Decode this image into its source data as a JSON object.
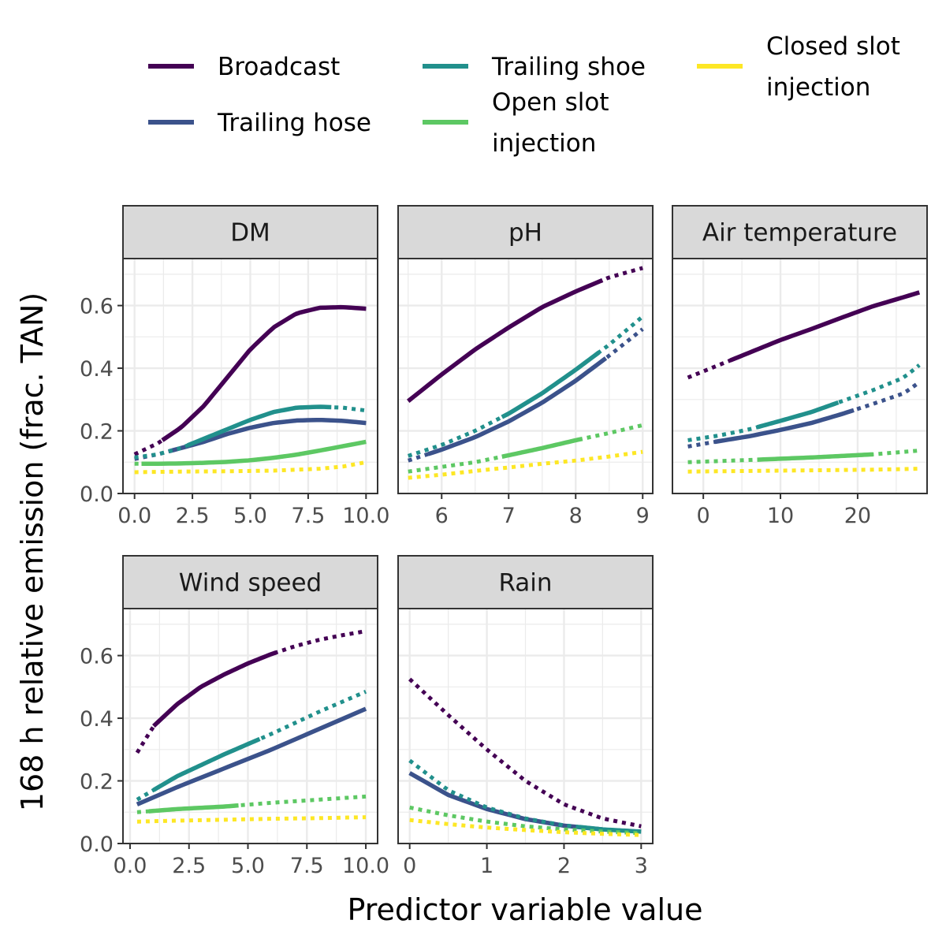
{
  "chart_data": {
    "type": "line",
    "ylabel": "168 h relative emission (frac. TAN)",
    "xlabel": "Predictor variable value",
    "legend": {
      "placement": "top",
      "entries": [
        {
          "series": "Broadcast",
          "lines": [
            "Broadcast"
          ],
          "color": "#440154"
        },
        {
          "series": "Trailing hose",
          "lines": [
            "Trailing hose"
          ],
          "color": "#3b528b"
        },
        {
          "series": "Trailing shoe",
          "lines": [
            "Trailing shoe"
          ],
          "color": "#21908c"
        },
        {
          "series": "Open slot injection",
          "lines": [
            "Open slot",
            "injection"
          ],
          "color": "#5dc863"
        },
        {
          "series": "Closed slot injection",
          "lines": [
            "Closed slot",
            "injection"
          ],
          "color": "#fde725"
        }
      ]
    },
    "ylim": [
      0,
      0.75
    ],
    "yticks": [
      "0.0",
      "0.2",
      "0.4",
      "0.6"
    ],
    "ytick_values": [
      0,
      0.2,
      0.4,
      0.6
    ],
    "grid": true,
    "note_linestyle": "solid = observed range, dotted = extrapolation",
    "panels": [
      {
        "strip": "DM",
        "xlim": [
          -0.5,
          10.5
        ],
        "xticks": [
          "0.0",
          "2.5",
          "5.0",
          "7.5",
          "10.0"
        ],
        "xtick_values": [
          0,
          2.5,
          5,
          7.5,
          10
        ],
        "series": [
          {
            "name": "Broadcast",
            "x": [
              0,
              1,
              2,
              3,
              4,
              5,
              6,
              7,
              8,
              9,
              10
            ],
            "y": [
              0.125,
              0.16,
              0.21,
              0.28,
              0.37,
              0.46,
              0.53,
              0.575,
              0.593,
              0.595,
              0.59
            ],
            "solid": [
              1.2,
              10
            ]
          },
          {
            "name": "Trailing hose",
            "x": [
              0,
              1,
              2,
              3,
              4,
              5,
              6,
              7,
              8,
              9,
              10
            ],
            "y": [
              0.11,
              0.125,
              0.145,
              0.165,
              0.19,
              0.21,
              0.225,
              0.233,
              0.235,
              0.232,
              0.225
            ],
            "solid": [
              1.5,
              10
            ]
          },
          {
            "name": "Trailing shoe",
            "x": [
              0,
              1,
              2,
              3,
              4,
              5,
              6,
              7,
              8,
              9,
              10
            ],
            "y": [
              0.115,
              0.125,
              0.145,
              0.175,
              0.205,
              0.235,
              0.26,
              0.274,
              0.277,
              0.274,
              0.265
            ],
            "solid": [
              2.3,
              8.5
            ]
          },
          {
            "name": "Open slot injection",
            "x": [
              0,
              1,
              2,
              3,
              4,
              5,
              6,
              7,
              8,
              9,
              10
            ],
            "y": [
              0.095,
              0.095,
              0.096,
              0.098,
              0.101,
              0.106,
              0.114,
              0.124,
              0.137,
              0.151,
              0.165
            ],
            "solid": [
              0.3,
              10
            ]
          },
          {
            "name": "Closed slot injection",
            "x": [
              0,
              2,
              4,
              6,
              8,
              9,
              10
            ],
            "y": [
              0.068,
              0.07,
              0.071,
              0.073,
              0.079,
              0.086,
              0.1
            ],
            "solid": null
          }
        ]
      },
      {
        "strip": "pH",
        "xlim": [
          5.35,
          9.15
        ],
        "xticks": [
          "6",
          "7",
          "8",
          "9"
        ],
        "xtick_values": [
          6,
          7,
          8,
          9
        ],
        "series": [
          {
            "name": "Broadcast",
            "x": [
              5.5,
              6,
              6.5,
              7,
              7.5,
              8,
              8.5,
              9
            ],
            "y": [
              0.295,
              0.38,
              0.46,
              0.53,
              0.595,
              0.645,
              0.69,
              0.72
            ],
            "solid": [
              5.5,
              8.4
            ]
          },
          {
            "name": "Trailing hose",
            "x": [
              5.5,
              6,
              6.5,
              7,
              7.5,
              8,
              8.5,
              9
            ],
            "y": [
              0.105,
              0.14,
              0.18,
              0.23,
              0.29,
              0.36,
              0.44,
              0.525
            ],
            "solid": [
              5.8,
              8.45
            ]
          },
          {
            "name": "Trailing shoe",
            "x": [
              5.5,
              6,
              6.5,
              7,
              7.5,
              8,
              8.5,
              9
            ],
            "y": [
              0.12,
              0.155,
              0.2,
              0.255,
              0.32,
              0.395,
              0.475,
              0.565
            ],
            "solid": [
              6.9,
              8.35
            ]
          },
          {
            "name": "Open slot injection",
            "x": [
              5.5,
              6,
              6.5,
              7,
              7.5,
              8,
              8.5,
              9
            ],
            "y": [
              0.07,
              0.085,
              0.1,
              0.122,
              0.145,
              0.17,
              0.193,
              0.218
            ],
            "solid": [
              6.9,
              8.1
            ]
          },
          {
            "name": "Closed slot injection",
            "x": [
              5.5,
              6,
              6.5,
              7,
              7.5,
              8,
              8.5,
              9
            ],
            "y": [
              0.05,
              0.06,
              0.072,
              0.083,
              0.095,
              0.105,
              0.118,
              0.133
            ],
            "solid": null
          }
        ]
      },
      {
        "strip": "Air temperature",
        "xlim": [
          -4,
          29
        ],
        "xticks": [
          "0",
          "10",
          "20"
        ],
        "xtick_values": [
          0,
          10,
          20
        ],
        "series": [
          {
            "name": "Broadcast",
            "x": [
              -2,
              2,
              6,
              10,
              14,
              18,
              22,
              26,
              28
            ],
            "y": [
              0.37,
              0.41,
              0.45,
              0.49,
              0.525,
              0.562,
              0.598,
              0.627,
              0.642
            ],
            "solid": [
              3.5,
              28
            ]
          },
          {
            "name": "Trailing hose",
            "x": [
              -2,
              2,
              6,
              10,
              14,
              18,
              22,
              26,
              28
            ],
            "y": [
              0.15,
              0.167,
              0.183,
              0.203,
              0.225,
              0.254,
              0.286,
              0.32,
              0.355
            ],
            "solid": [
              1.5,
              19.5
            ]
          },
          {
            "name": "Trailing shoe",
            "x": [
              -2,
              2,
              6,
              10,
              14,
              18,
              22,
              26,
              28
            ],
            "y": [
              0.17,
              0.185,
              0.205,
              0.232,
              0.26,
              0.295,
              0.33,
              0.37,
              0.41
            ],
            "solid": [
              7,
              17.5
            ]
          },
          {
            "name": "Open slot injection",
            "x": [
              -2,
              6,
              14,
              22,
              28
            ],
            "y": [
              0.1,
              0.107,
              0.115,
              0.125,
              0.137
            ],
            "solid": [
              7,
              22
            ]
          },
          {
            "name": "Closed slot injection",
            "x": [
              -2,
              6,
              14,
              22,
              28
            ],
            "y": [
              0.07,
              0.072,
              0.074,
              0.076,
              0.079
            ],
            "solid": null
          }
        ]
      },
      {
        "strip": "Wind speed",
        "xlim": [
          -0.3,
          10.5
        ],
        "xticks": [
          "0.0",
          "2.5",
          "5.0",
          "7.5",
          "10.0"
        ],
        "xtick_values": [
          0,
          2.5,
          5,
          7.5,
          10
        ],
        "series": [
          {
            "name": "Broadcast",
            "x": [
              0.3,
              1,
              2,
              3,
              4,
              5,
              6,
              7,
              8,
              9,
              10
            ],
            "y": [
              0.29,
              0.375,
              0.445,
              0.5,
              0.54,
              0.575,
              0.605,
              0.63,
              0.65,
              0.665,
              0.678
            ],
            "solid": [
              1,
              6.2
            ]
          },
          {
            "name": "Trailing hose",
            "x": [
              0.3,
              2,
              4,
              6,
              8,
              10
            ],
            "y": [
              0.125,
              0.18,
              0.24,
              0.3,
              0.365,
              0.43
            ],
            "solid": [
              0.3,
              10
            ]
          },
          {
            "name": "Trailing shoe",
            "x": [
              0.3,
              2,
              4,
              6,
              8,
              10
            ],
            "y": [
              0.14,
              0.215,
              0.285,
              0.35,
              0.42,
              0.485
            ],
            "solid": [
              1,
              5.5
            ]
          },
          {
            "name": "Open slot injection",
            "x": [
              0.3,
              2,
              4,
              6,
              8,
              10
            ],
            "y": [
              0.1,
              0.11,
              0.118,
              0.13,
              0.14,
              0.15
            ],
            "solid": [
              0.8,
              4.6
            ]
          },
          {
            "name": "Closed slot injection",
            "x": [
              0.3,
              2,
              4,
              6,
              8,
              10
            ],
            "y": [
              0.07,
              0.073,
              0.076,
              0.079,
              0.081,
              0.084
            ],
            "solid": null
          }
        ]
      },
      {
        "strip": "Rain",
        "xlim": [
          -0.15,
          3.15
        ],
        "xticks": [
          "0",
          "1",
          "2",
          "3"
        ],
        "xtick_values": [
          0,
          1,
          2,
          3
        ],
        "series": [
          {
            "name": "Broadcast",
            "x": [
              0,
              0.5,
              1,
              1.5,
              2,
              2.5,
              3
            ],
            "y": [
              0.525,
              0.41,
              0.3,
              0.2,
              0.125,
              0.08,
              0.055
            ],
            "solid": null
          },
          {
            "name": "Trailing hose",
            "x": [
              0,
              0.5,
              1,
              1.5,
              2,
              2.5,
              3
            ],
            "y": [
              0.225,
              0.155,
              0.11,
              0.078,
              0.057,
              0.045,
              0.038
            ],
            "solid": [
              0,
              2.5
            ]
          },
          {
            "name": "Trailing shoe",
            "x": [
              0,
              0.5,
              1,
              1.5,
              2,
              2.5,
              3
            ],
            "y": [
              0.265,
              0.17,
              0.115,
              0.08,
              0.058,
              0.045,
              0.038
            ],
            "solid": [
              2.2,
              3
            ]
          },
          {
            "name": "Open slot injection",
            "x": [
              0,
              0.5,
              1,
              1.5,
              2,
              2.5,
              3
            ],
            "y": [
              0.115,
              0.09,
              0.07,
              0.055,
              0.045,
              0.038,
              0.033
            ],
            "solid": null
          },
          {
            "name": "Closed slot injection",
            "x": [
              0,
              0.5,
              1,
              1.5,
              2,
              2.5,
              3
            ],
            "y": [
              0.075,
              0.062,
              0.051,
              0.043,
              0.036,
              0.031,
              0.027
            ],
            "solid": null
          }
        ]
      }
    ]
  }
}
